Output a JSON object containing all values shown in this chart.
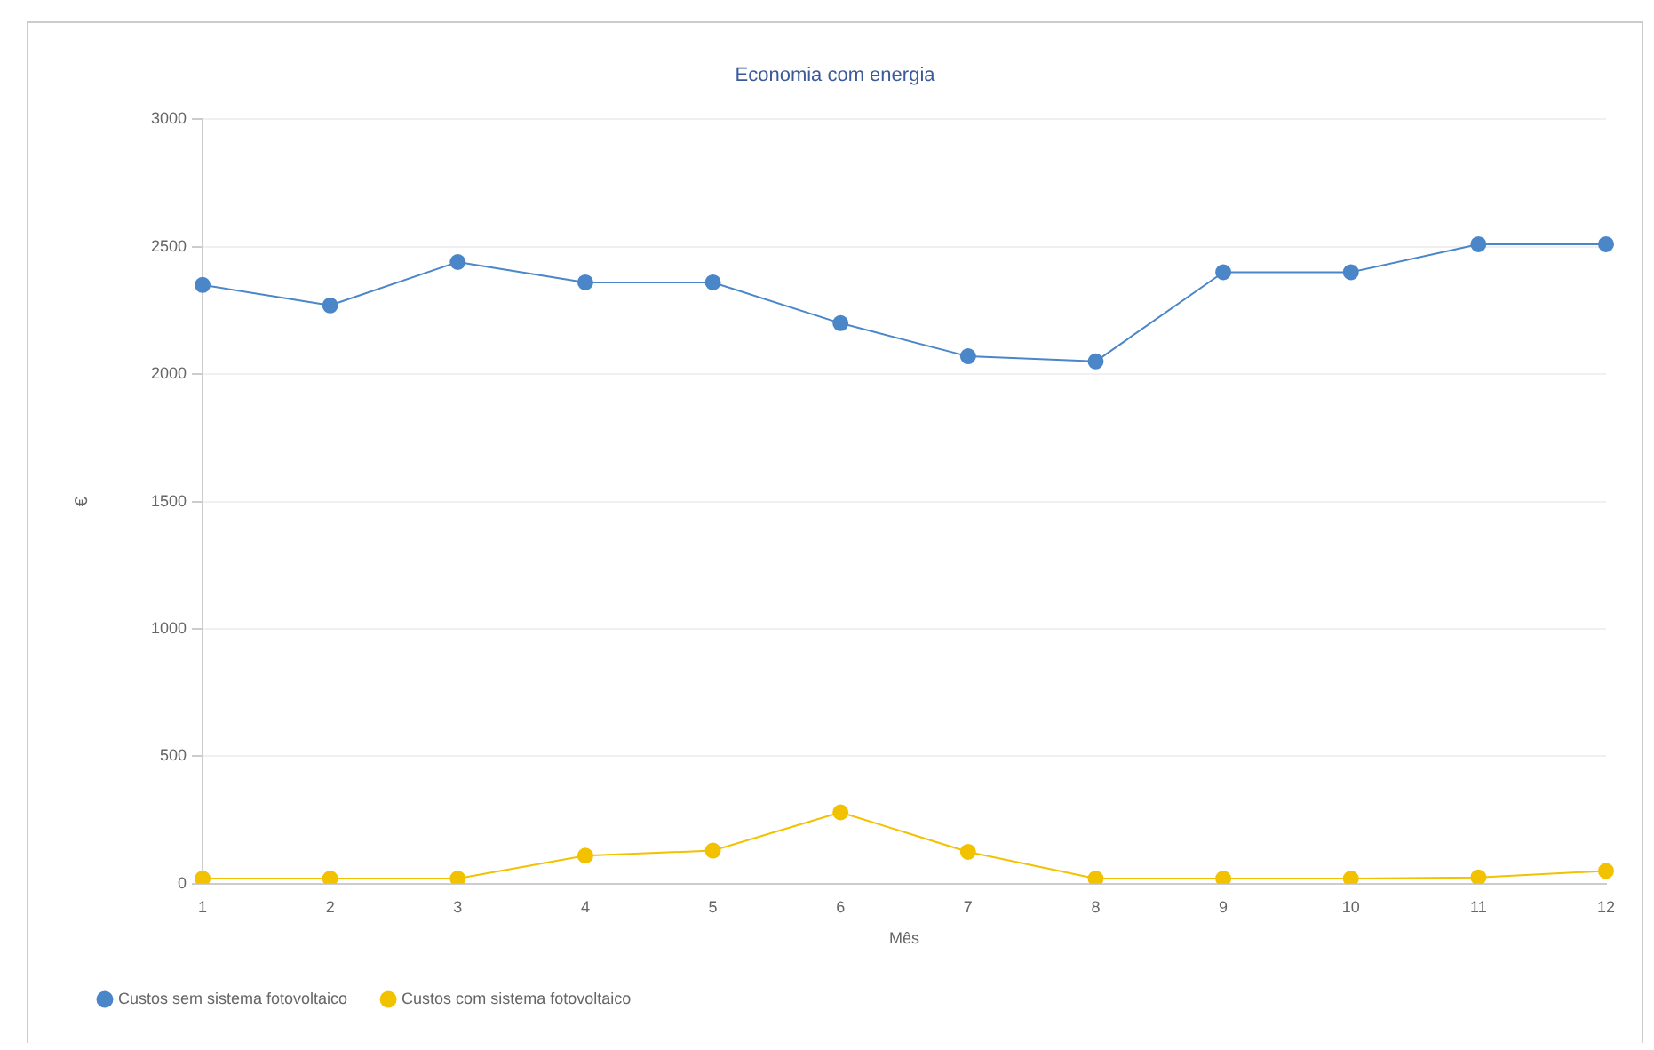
{
  "chart_data": {
    "type": "line",
    "title": "Economia com energia",
    "xlabel": "Mês",
    "ylabel": "€",
    "categories": [
      "1",
      "2",
      "3",
      "4",
      "5",
      "6",
      "7",
      "8",
      "9",
      "10",
      "11",
      "12"
    ],
    "series": [
      {
        "name": "Custos sem sistema fotovoltaico",
        "color": "#4a86c8",
        "values": [
          2350,
          2270,
          2440,
          2360,
          2360,
          2200,
          2070,
          2050,
          2400,
          2400,
          2510,
          2510
        ]
      },
      {
        "name": "Custos com sistema fotovoltaico",
        "color": "#f2c200",
        "values": [
          20,
          20,
          20,
          110,
          130,
          280,
          125,
          20,
          20,
          20,
          25,
          50
        ]
      }
    ],
    "ylim": [
      0,
      3000
    ],
    "yticks": [
      0,
      500,
      1000,
      1500,
      2000,
      2500,
      3000
    ],
    "grid": "y",
    "legend": "bottom left",
    "marker": "circle",
    "line_style": "solid"
  }
}
